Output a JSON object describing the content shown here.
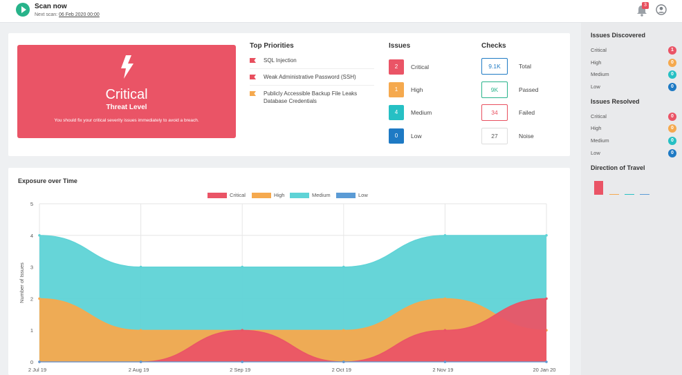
{
  "header": {
    "scan_now": "Scan now",
    "next_scan_label": "Next scan:",
    "next_scan_date": "06 Feb 2020 00:00",
    "notification_count": "3"
  },
  "threat": {
    "level": "Critical",
    "sub": "Threat Level",
    "message": "You should fix your critical severity issues immediately to avoid a breach."
  },
  "top_priorities": {
    "title": "Top Priorities",
    "items": [
      {
        "label": "SQL Injection",
        "color": "#e84f5e"
      },
      {
        "label": "Weak Administrative Password (SSH)",
        "color": "#e84f5e"
      },
      {
        "label": "Publicly Accessible Backup File Leaks Database Credentials",
        "color": "#f5a94e"
      }
    ]
  },
  "issues": {
    "title": "Issues",
    "rows": [
      {
        "count": "2",
        "label": "Critical",
        "color": "#ea5466"
      },
      {
        "count": "1",
        "label": "High",
        "color": "#f5a94e"
      },
      {
        "count": "4",
        "label": "Medium",
        "color": "#26c0c4"
      },
      {
        "count": "0",
        "label": "Low",
        "color": "#1e7ac4"
      }
    ]
  },
  "checks": {
    "title": "Checks",
    "rows": [
      {
        "value": "9.1K",
        "label": "Total",
        "color": "#1e7ac4"
      },
      {
        "value": "9K",
        "label": "Passed",
        "color": "#27b38a"
      },
      {
        "value": "34",
        "label": "Failed",
        "color": "#e84f5e"
      },
      {
        "value": "27",
        "label": "Noise",
        "color": "#555555"
      }
    ]
  },
  "chart_data": {
    "type": "area",
    "title": "Exposure over Time",
    "ylabel": "Number of Issues",
    "xlabel": "",
    "ylim": [
      0,
      5
    ],
    "yticks": [
      0,
      1,
      2,
      3,
      4,
      5
    ],
    "x": [
      "2 Jul 19",
      "2 Aug 19",
      "2 Sep 19",
      "2 Oct 19",
      "2 Nov 19",
      "20 Jan 20"
    ],
    "stacked": false,
    "legend_position": "top",
    "series": [
      {
        "name": "Critical",
        "color": "#ea5466",
        "values": [
          0,
          0,
          1,
          0,
          1,
          2
        ]
      },
      {
        "name": "High",
        "color": "#f5a94e",
        "values": [
          2,
          1,
          1,
          1,
          2,
          1
        ]
      },
      {
        "name": "Medium",
        "color": "#5ed3d6",
        "values": [
          4,
          3,
          3,
          3,
          4,
          4
        ]
      },
      {
        "name": "Low",
        "color": "#5b9bd5",
        "values": [
          0,
          0,
          0,
          0,
          0,
          0
        ]
      }
    ]
  },
  "issues_discovered": {
    "title": "Issues Discovered",
    "rows": [
      {
        "label": "Critical",
        "count": "1",
        "color": "#ea5466"
      },
      {
        "label": "High",
        "count": "0",
        "color": "#f5a94e"
      },
      {
        "label": "Medium",
        "count": "0",
        "color": "#26c0c4"
      },
      {
        "label": "Low",
        "count": "0",
        "color": "#1e7ac4"
      }
    ]
  },
  "issues_resolved": {
    "title": "Issues Resolved",
    "rows": [
      {
        "label": "Critical",
        "count": "0",
        "color": "#ea5466"
      },
      {
        "label": "High",
        "count": "0",
        "color": "#f5a94e"
      },
      {
        "label": "Medium",
        "count": "0",
        "color": "#26c0c4"
      },
      {
        "label": "Low",
        "count": "0",
        "color": "#1e7ac4"
      }
    ]
  },
  "direction_of_travel": {
    "title": "Direction of Travel",
    "values": [
      1,
      0,
      0,
      0
    ],
    "colors": [
      "#ea5466",
      "#f5a94e",
      "#26c0c4",
      "#5b9bd5"
    ]
  }
}
